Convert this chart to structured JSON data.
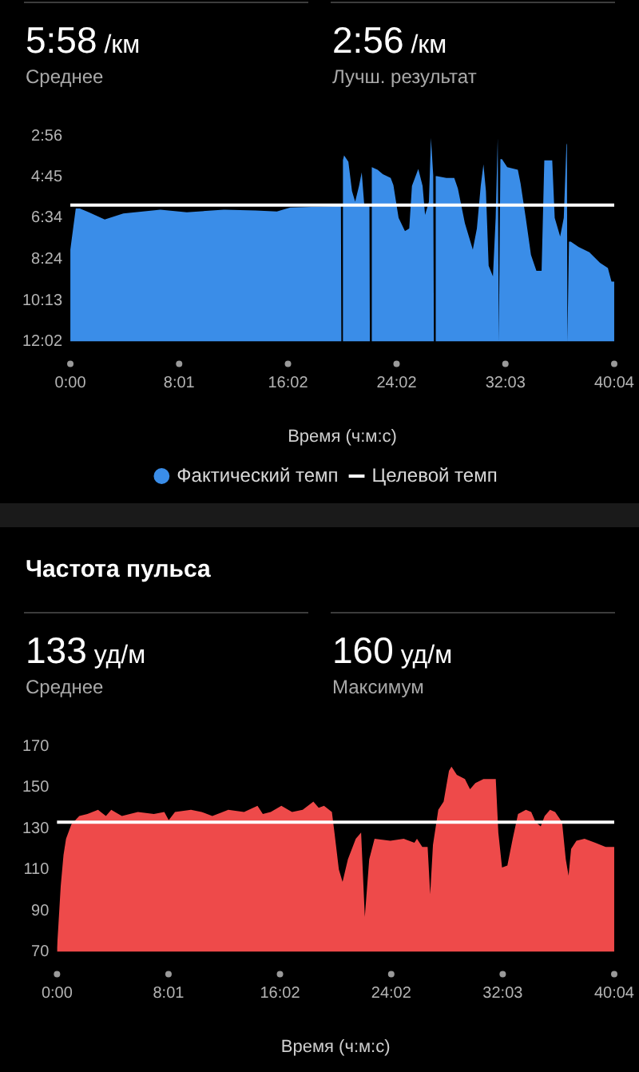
{
  "chart_data": [
    {
      "type": "area",
      "annotations": [
        "5:58 /км",
        "Среднее",
        "2:56 /км",
        "Лучш. результат"
      ],
      "xlabel": "Время (ч:м:с)",
      "x": [
        0,
        0,
        24,
        42,
        82,
        152,
        234,
        398,
        515,
        679,
        819,
        913,
        972,
        1100,
        1196,
        1198,
        1203,
        1205,
        1210,
        1229,
        1245,
        1259,
        1276,
        1288,
        1299,
        1316,
        1322,
        1324,
        1329,
        1331,
        1334,
        1358,
        1381,
        1416,
        1428,
        1451,
        1479,
        1498,
        1510,
        1538,
        1557,
        1568,
        1585,
        1594,
        1604,
        1606,
        1608,
        1613,
        1615,
        1620,
        1662,
        1697,
        1713,
        1744,
        1779,
        1797,
        1814,
        1826,
        1837,
        1849,
        1868,
        1880,
        1889,
        1894,
        1899,
        1901,
        1908,
        1931,
        1978,
        1990,
        2013,
        2036,
        2060,
        2083,
        2095,
        2130,
        2141,
        2165,
        2181,
        2193,
        2195,
        2197,
        2202,
        2204,
        2212,
        2247,
        2294,
        2341,
        2376,
        2392,
        2404,
        2404
      ],
      "series": [
        {
          "name": "Фактический темп",
          "color": "#3a8de8",
          "values": [
            722,
            478,
            369,
            369,
            379,
            398,
            382,
            372,
            379,
            372,
            374,
            377,
            366,
            364,
            362,
            722,
            722,
            240,
            228,
            245,
            323,
            351,
            309,
            273,
            358,
            362,
            362,
            722,
            722,
            259,
            259,
            266,
            278,
            288,
            307,
            394,
            429,
            422,
            309,
            264,
            309,
            386,
            351,
            182,
            281,
            283,
            722,
            722,
            283,
            283,
            288,
            288,
            316,
            408,
            478,
            422,
            309,
            252,
            323,
            521,
            549,
            394,
            182,
            722,
            722,
            238,
            238,
            259,
            266,
            302,
            394,
            492,
            534,
            534,
            241,
            241,
            394,
            443,
            394,
            196,
            200,
            722,
            722,
            457,
            457,
            471,
            485,
            513,
            527,
            563,
            563,
            722
          ]
        }
      ],
      "xlim": [
        0,
        2404
      ],
      "xticks": [
        {
          "value": 0,
          "label": "0:00"
        },
        {
          "value": 481,
          "label": "8:01"
        },
        {
          "value": 962,
          "label": "16:02"
        },
        {
          "value": 1442,
          "label": "24:02"
        },
        {
          "value": 1923,
          "label": "32:03"
        },
        {
          "value": 2404,
          "label": "40:04"
        }
      ],
      "ylim": [
        722,
        176
      ],
      "yticks": [
        {
          "value": 176,
          "label": "2:56"
        },
        {
          "value": 285,
          "label": "4:45"
        },
        {
          "value": 394,
          "label": "6:34"
        },
        {
          "value": 504,
          "label": "8:24"
        },
        {
          "value": 613,
          "label": "10:13"
        },
        {
          "value": 722,
          "label": "12:02"
        }
      ],
      "ref_lines": [
        {
          "axis": "y",
          "value": 360,
          "label": "Целевой темп",
          "color": "#ffffff"
        }
      ],
      "legend": "bottom"
    },
    {
      "type": "area",
      "title": "Частота пульса",
      "annotations": [
        "133 уд/м",
        "Среднее",
        "160 уд/м",
        "Максимум"
      ],
      "xlabel": "Время (ч:м:с)",
      "x": [
        0,
        5,
        16,
        28,
        39,
        62,
        96,
        131,
        177,
        211,
        234,
        280,
        349,
        418,
        463,
        482,
        509,
        578,
        624,
        670,
        739,
        807,
        865,
        888,
        922,
        968,
        1014,
        1060,
        1106,
        1129,
        1152,
        1186,
        1197,
        1216,
        1232,
        1255,
        1289,
        1312,
        1328,
        1347,
        1370,
        1438,
        1496,
        1542,
        1553,
        1576,
        1599,
        1610,
        1622,
        1645,
        1668,
        1691,
        1702,
        1725,
        1760,
        1782,
        1805,
        1840,
        1893,
        1904,
        1920,
        1943,
        1966,
        1989,
        2023,
        2046,
        2065,
        2087,
        2104,
        2127,
        2149,
        2179,
        2195,
        2207,
        2218,
        2241,
        2276,
        2322,
        2367,
        2404
      ],
      "series": [
        {
          "color": "#ee4a4a",
          "values": [
            72,
            81,
            102,
            117,
            125,
            132,
            136,
            137,
            139,
            136,
            139,
            136,
            138,
            137,
            138,
            134,
            138,
            139,
            138,
            136,
            139,
            138,
            141,
            137,
            138,
            141,
            138,
            139,
            143,
            140,
            141,
            138,
            128,
            110,
            104,
            115,
            125,
            128,
            87,
            115,
            125,
            124,
            125,
            123,
            125,
            121,
            121,
            98,
            122,
            139,
            143,
            158,
            160,
            156,
            154,
            149,
            152,
            154,
            154,
            128,
            111,
            112,
            125,
            137,
            139,
            138,
            133,
            131,
            136,
            139,
            138,
            133,
            115,
            107,
            120,
            124,
            125,
            123,
            121,
            121
          ]
        }
      ],
      "xlim": [
        0,
        2404
      ],
      "xticks": [
        {
          "value": 0,
          "label": "0:00"
        },
        {
          "value": 481,
          "label": "8:01"
        },
        {
          "value": 962,
          "label": "16:02"
        },
        {
          "value": 1442,
          "label": "24:02"
        },
        {
          "value": 1923,
          "label": "32:03"
        },
        {
          "value": 2404,
          "label": "40:04"
        }
      ],
      "ylim": [
        70,
        170
      ],
      "yticks": [
        70,
        90,
        110,
        130,
        150,
        170
      ],
      "ref_lines": [
        {
          "axis": "y",
          "value": 133,
          "color": "#ffffff"
        }
      ]
    }
  ]
}
